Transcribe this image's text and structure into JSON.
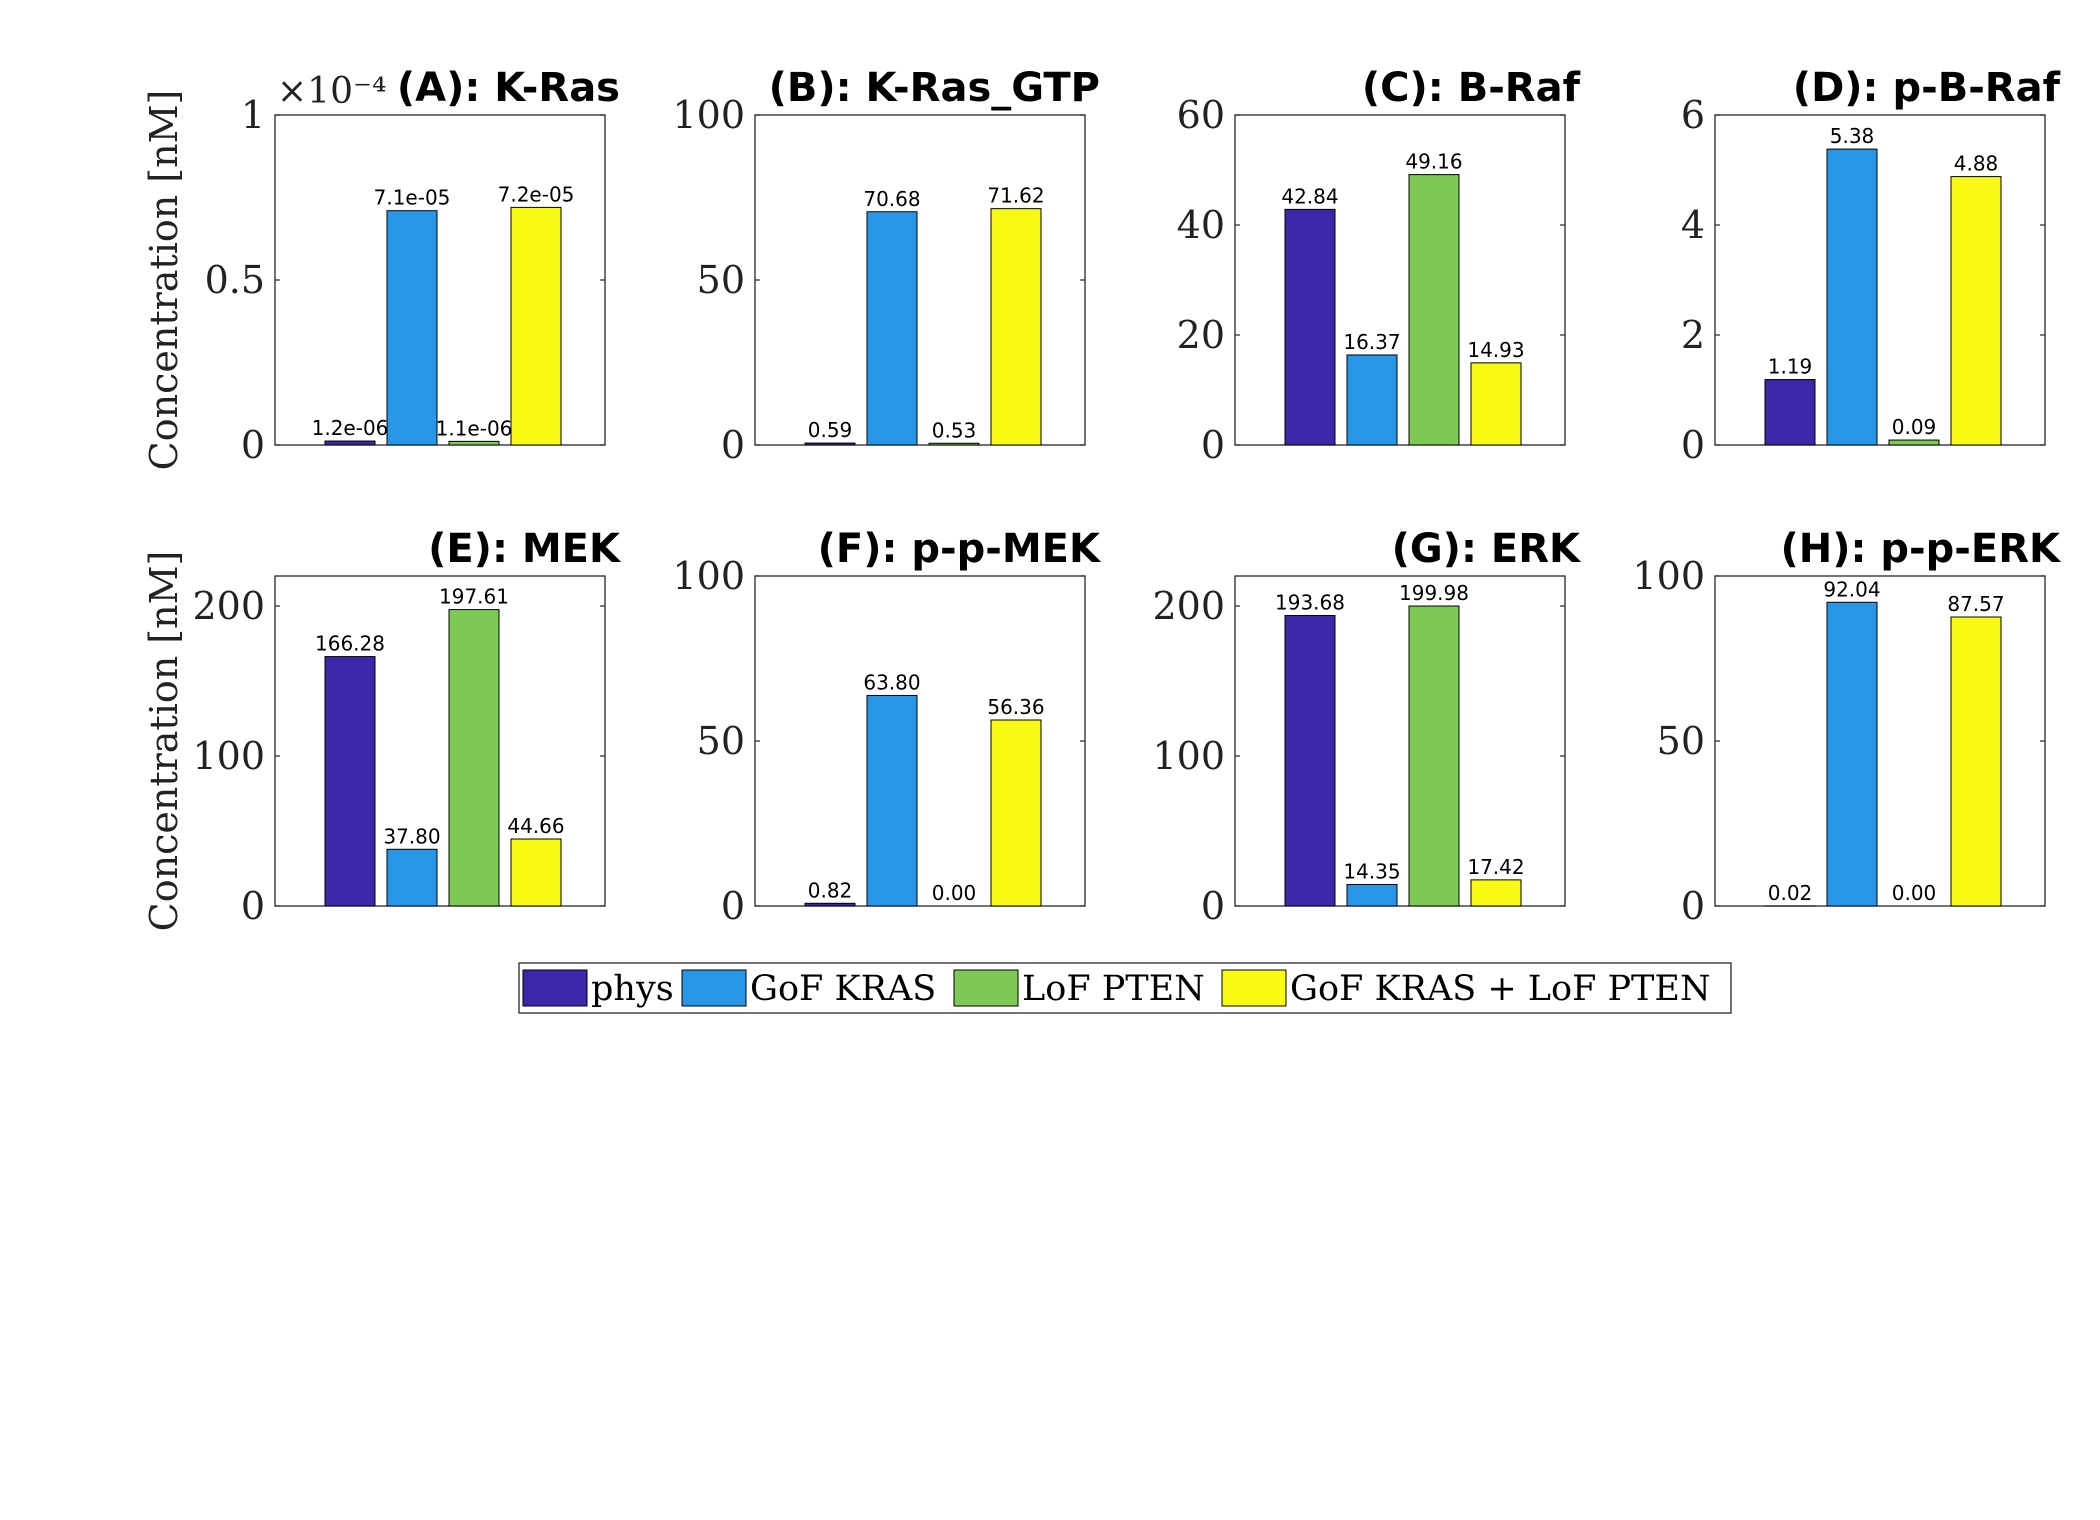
{
  "colors": {
    "phys": "#3d26a8",
    "gof_kras": "#2897e8",
    "lof_pten": "#7ec854",
    "gof_kras_lof_pten": "#f9fa14"
  },
  "legend": {
    "placement": "bottom-center",
    "entries": [
      {
        "label": "phys",
        "color": "#3d26a8"
      },
      {
        "label": "GoF KRAS",
        "color": "#2897e8"
      },
      {
        "label": "LoF PTEN",
        "color": "#7ec854"
      },
      {
        "label": "GoF KRAS + LoF PTEN",
        "color": "#f9fa14"
      }
    ]
  },
  "ylabel": "Concentration [nM]",
  "chart_data": [
    {
      "type": "bar",
      "title": "(A): K-Ras",
      "ylabel": "Concentration [nM]",
      "ylim": [
        0,
        0.0001
      ],
      "yticks": [
        0,
        5e-05,
        0.0001
      ],
      "yticklabels": [
        "0",
        "0.5",
        "1"
      ],
      "multiplier": "×10⁻⁴",
      "values": [
        1.2e-06,
        7.1e-05,
        1.1e-06,
        7.2e-05
      ],
      "labels": [
        "1.2e-06",
        "7.1e-05",
        "1.1e-06",
        "7.2e-05"
      ]
    },
    {
      "type": "bar",
      "title": "(B): K-Ras_GTP",
      "ylabel": "",
      "ylim": [
        0,
        100
      ],
      "yticks": [
        0,
        50,
        100
      ],
      "yticklabels": [
        "0",
        "50",
        "100"
      ],
      "values": [
        0.59,
        70.68,
        0.53,
        71.62
      ],
      "labels": [
        "0.59",
        "70.68",
        "0.53",
        "71.62"
      ]
    },
    {
      "type": "bar",
      "title": "(C): B-Raf",
      "ylabel": "",
      "ylim": [
        0,
        60
      ],
      "yticks": [
        0,
        20,
        40,
        60
      ],
      "yticklabels": [
        "0",
        "20",
        "40",
        "60"
      ],
      "values": [
        42.84,
        16.37,
        49.16,
        14.93
      ],
      "labels": [
        "42.84",
        "16.37",
        "49.16",
        "14.93"
      ]
    },
    {
      "type": "bar",
      "title": "(D): p-B-Raf",
      "ylabel": "",
      "ylim": [
        0,
        6
      ],
      "yticks": [
        0,
        2,
        4,
        6
      ],
      "yticklabels": [
        "0",
        "2",
        "4",
        "6"
      ],
      "values": [
        1.19,
        5.38,
        0.09,
        4.88
      ],
      "labels": [
        "1.19",
        "5.38",
        "0.09",
        "4.88"
      ]
    },
    {
      "type": "bar",
      "title": "(E): MEK",
      "ylabel": "Concentration [nM]",
      "ylim": [
        0,
        220
      ],
      "yticks": [
        0,
        100,
        200
      ],
      "yticklabels": [
        "0",
        "100",
        "200"
      ],
      "values": [
        166.28,
        37.8,
        197.61,
        44.66
      ],
      "labels": [
        "166.28",
        "37.80",
        "197.61",
        "44.66"
      ]
    },
    {
      "type": "bar",
      "title": "(F): p-p-MEK",
      "ylabel": "",
      "ylim": [
        0,
        100
      ],
      "yticks": [
        0,
        50,
        100
      ],
      "yticklabels": [
        "0",
        "50",
        "100"
      ],
      "values": [
        0.82,
        63.8,
        0.0,
        56.36
      ],
      "labels": [
        "0.82",
        "63.80",
        "0.00",
        "56.36"
      ]
    },
    {
      "type": "bar",
      "title": "(G): ERK",
      "ylabel": "",
      "ylim": [
        0,
        220
      ],
      "yticks": [
        0,
        100,
        200
      ],
      "yticklabels": [
        "0",
        "100",
        "200"
      ],
      "values": [
        193.68,
        14.35,
        199.98,
        17.42
      ],
      "labels": [
        "193.68",
        "14.35",
        "199.98",
        "17.42"
      ]
    },
    {
      "type": "bar",
      "title": "(H): p-p-ERK",
      "ylabel": "",
      "ylim": [
        0,
        100
      ],
      "yticks": [
        0,
        50,
        100
      ],
      "yticklabels": [
        "0",
        "50",
        "100"
      ],
      "values": [
        0.02,
        92.04,
        0.0,
        87.57
      ],
      "labels": [
        "0.02",
        "92.04",
        "0.00",
        "87.57"
      ]
    }
  ]
}
